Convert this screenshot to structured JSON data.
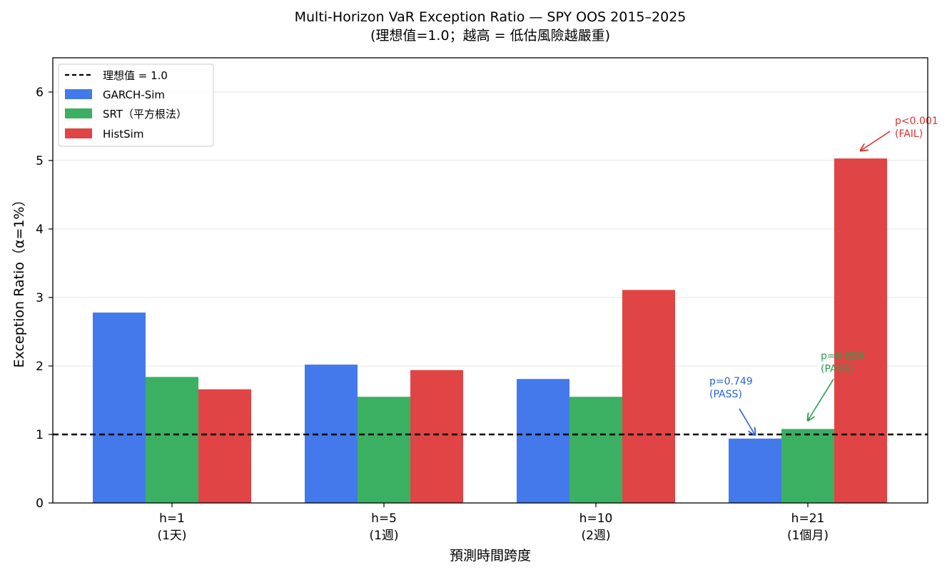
{
  "chart_data": {
    "type": "bar",
    "title": "Multi-Horizon VaR Exception Ratio — SPY OOS 2015–2025",
    "subtitle": "(理想值=1.0；越高 = 低估風險越嚴重)",
    "xlabel": "預測時間跨度",
    "ylabel": "Exception Ratio（α=1%）",
    "categories": [
      "h=1\n(1天)",
      "h=5\n(1週)",
      "h=10\n(2週)",
      "h=21\n(1個月)"
    ],
    "ylim": [
      0,
      6.5
    ],
    "yticks": [
      0,
      1,
      2,
      3,
      4,
      5,
      6
    ],
    "grid": "horizontal",
    "legend_position": "top-left",
    "reference_line": {
      "value": 1.0,
      "label": "理想值 = 1.0",
      "style": "dashed",
      "color": "#000000"
    },
    "series": [
      {
        "name": "GARCH-Sim",
        "color": "#4479eb",
        "values": [
          2.78,
          2.02,
          1.81,
          0.94
        ]
      },
      {
        "name": "SRT（平方根法）",
        "color": "#3bb062",
        "values": [
          1.84,
          1.55,
          1.55,
          1.08
        ]
      },
      {
        "name": "HistSim",
        "color": "#e04444",
        "values": [
          1.66,
          1.94,
          3.11,
          5.03
        ]
      }
    ],
    "annotations": [
      {
        "text": "p=0.749\n(PASS)",
        "series": 0,
        "category": 3,
        "color": "#2a5fe0"
      },
      {
        "text": "p=0.659\n(PASS)",
        "series": 1,
        "category": 3,
        "color": "#2e9e4e"
      },
      {
        "text": "p<0.001\n(FAIL)",
        "series": 2,
        "category": 3,
        "color": "#e03030"
      }
    ]
  }
}
